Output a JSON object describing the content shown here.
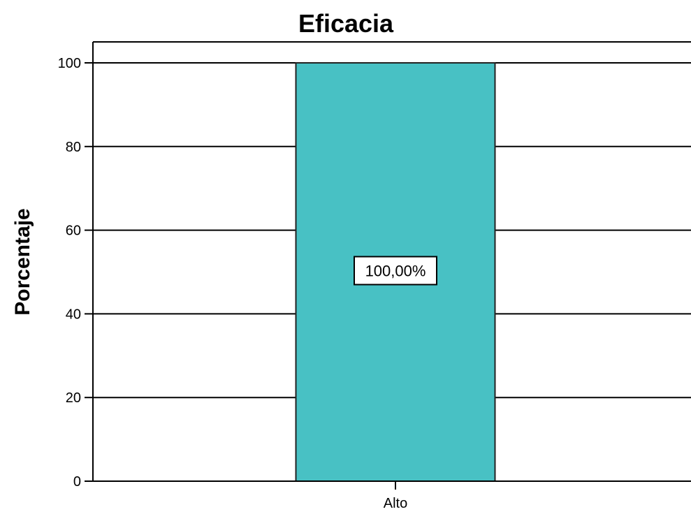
{
  "chart_data": {
    "type": "bar",
    "title": "Eficacia",
    "xlabel": "",
    "ylabel": "Porcentaje",
    "categories": [
      "Alto"
    ],
    "values": [
      100
    ],
    "data_labels": [
      "100,00%"
    ],
    "ylim": [
      0,
      100
    ],
    "yticks": [
      "0",
      "20",
      "40",
      "60",
      "80",
      "100"
    ],
    "grid": true,
    "legend": "none",
    "bar_color": "#48c1c4",
    "bar_edge_color": "#222222"
  }
}
